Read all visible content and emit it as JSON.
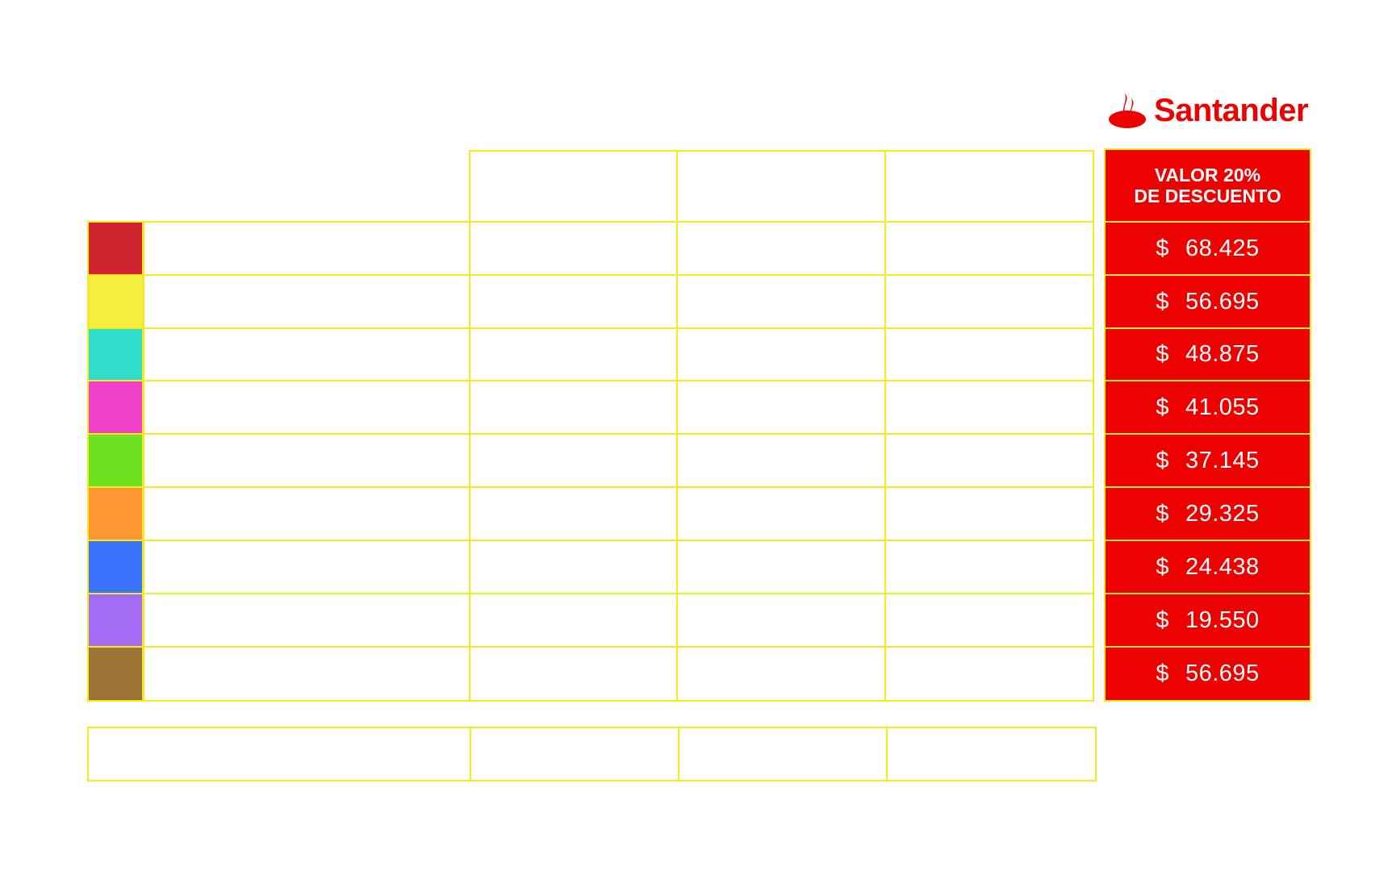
{
  "brand": {
    "name": "Santander",
    "color": "#ec0000",
    "icon": "santander-flame-icon"
  },
  "discount_column": {
    "header_line1": "VALOR 20%",
    "header_line2": "DE DESCUENTO",
    "currency": "$",
    "values": [
      "68.425",
      "56.695",
      "48.875",
      "41.055",
      "37.145",
      "29.325",
      "24.438",
      "19.550",
      "56.695"
    ]
  },
  "rows": [
    {
      "color": "#d0232e"
    },
    {
      "color": "#f5ed3f"
    },
    {
      "color": "#2fdccc"
    },
    {
      "color": "#ef42c9"
    },
    {
      "color": "#6de021"
    },
    {
      "color": "#ff9533"
    },
    {
      "color": "#3b74fc"
    },
    {
      "color": "#a36cf5"
    },
    {
      "color": "#9c7536"
    }
  ],
  "border_color": "#f5ea1c"
}
